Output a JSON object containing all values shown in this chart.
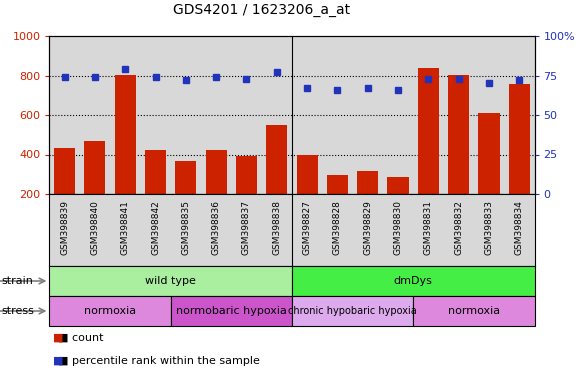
{
  "title": "GDS4201 / 1623206_a_at",
  "samples": [
    "GSM398839",
    "GSM398840",
    "GSM398841",
    "GSM398842",
    "GSM398835",
    "GSM398836",
    "GSM398837",
    "GSM398838",
    "GSM398827",
    "GSM398828",
    "GSM398829",
    "GSM398830",
    "GSM398831",
    "GSM398832",
    "GSM398833",
    "GSM398834"
  ],
  "counts": [
    435,
    470,
    805,
    425,
    365,
    425,
    390,
    550,
    400,
    295,
    315,
    285,
    840,
    805,
    610,
    755
  ],
  "percentiles": [
    74,
    74,
    79,
    74,
    72,
    74,
    73,
    77,
    67,
    66,
    67,
    66,
    73,
    73,
    70,
    72
  ],
  "ylim_left": [
    200,
    1000
  ],
  "ylim_right": [
    0,
    100
  ],
  "yticks_left": [
    200,
    400,
    600,
    800,
    1000
  ],
  "yticks_right": [
    0,
    25,
    50,
    75,
    100
  ],
  "bar_color": "#cc2200",
  "dot_color": "#2233bb",
  "bg_color": "#d8d8d8",
  "strain_groups": [
    {
      "label": "wild type",
      "start": 0,
      "end": 8,
      "color": "#aaeea0"
    },
    {
      "label": "dmDys",
      "start": 8,
      "end": 16,
      "color": "#44ee44"
    }
  ],
  "stress_groups": [
    {
      "label": "normoxia",
      "start": 0,
      "end": 4,
      "color": "#dd88dd"
    },
    {
      "label": "normobaric hypoxia",
      "start": 4,
      "end": 8,
      "color": "#cc55cc"
    },
    {
      "label": "chronic hypobaric hypoxia",
      "start": 8,
      "end": 12,
      "color": "#ddaaee"
    },
    {
      "label": "normoxia",
      "start": 12,
      "end": 16,
      "color": "#dd88dd"
    }
  ],
  "legend_items": [
    {
      "label": "count",
      "color": "#cc2200"
    },
    {
      "label": "percentile rank within the sample",
      "color": "#2233bb"
    }
  ],
  "separator_at": 7.5,
  "ylabel_left_color": "#cc2200",
  "ylabel_right_color": "#2233bb",
  "title_fontsize": 10,
  "axis_fontsize": 8,
  "label_fontsize": 6.5
}
